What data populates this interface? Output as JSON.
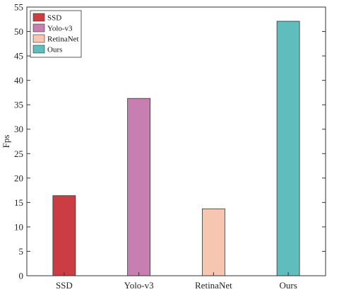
{
  "chart_data": {
    "type": "bar",
    "categories": [
      "SSD",
      "Yolo-v3",
      "RetinaNet",
      "Ours"
    ],
    "values": [
      16.4,
      36.3,
      13.7,
      52.1
    ],
    "colors": [
      "#cc3d43",
      "#c77fb1",
      "#f7c6b0",
      "#5fbdbd"
    ],
    "ylabel": "Fps",
    "xlabel": "",
    "ylim": [
      0,
      55
    ],
    "yticks": [
      0,
      5,
      10,
      15,
      20,
      25,
      30,
      35,
      40,
      45,
      50,
      55
    ],
    "legend": {
      "placement": "top-left",
      "entries": [
        "SSD",
        "Yolo-v3",
        "RetinaNet",
        "Ours"
      ]
    },
    "grid": false
  }
}
